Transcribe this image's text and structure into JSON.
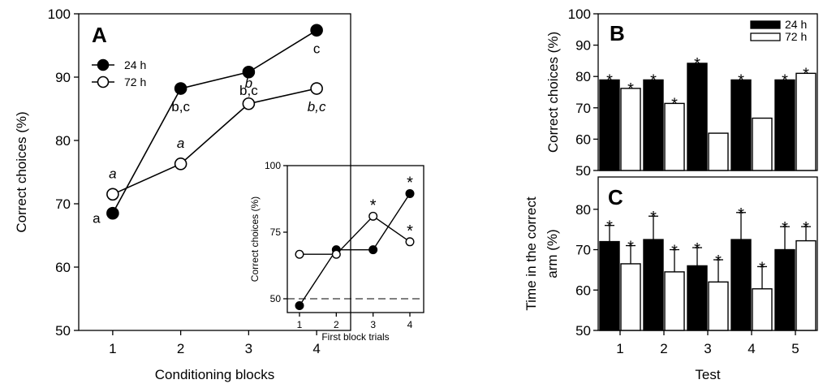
{
  "chart_data": [
    {
      "panel": "A",
      "type": "line",
      "xlabel": "Conditioning blocks",
      "ylabel": "Correct choices (%)",
      "x": [
        1,
        2,
        3,
        4
      ],
      "xlim": [
        0.5,
        4.5
      ],
      "ylim": [
        50,
        100
      ],
      "yticks": [
        50,
        60,
        70,
        80,
        90,
        100
      ],
      "series": [
        {
          "name": "24 h",
          "marker": "filled",
          "values": [
            68.5,
            88.2,
            90.8,
            97.4
          ],
          "labels": [
            "a",
            "b,c",
            "b,c",
            "c"
          ],
          "label_italic": false
        },
        {
          "name": "72 h",
          "marker": "open",
          "values": [
            71.5,
            76.3,
            85.8,
            88.2
          ],
          "labels": [
            "a",
            "a",
            "b",
            "b,c"
          ],
          "label_italic": true
        }
      ],
      "legend_position": "top-left"
    },
    {
      "panel": "A-inset",
      "type": "line",
      "xlabel": "First block trials",
      "ylabel": "Correct choices (%)",
      "x": [
        1,
        2,
        3,
        4
      ],
      "xlim": [
        0.6,
        4.4
      ],
      "ylim": [
        45,
        100
      ],
      "yticks": [
        50,
        75,
        100
      ],
      "reference_line": 50,
      "series": [
        {
          "name": "24 h",
          "marker": "filled",
          "values": [
            47.4,
            68.4,
            68.4,
            89.5
          ],
          "stars": [
            false,
            false,
            false,
            true
          ]
        },
        {
          "name": "72 h",
          "marker": "open",
          "values": [
            66.7,
            66.7,
            81.0,
            71.4
          ],
          "stars": [
            false,
            false,
            true,
            true
          ]
        }
      ]
    },
    {
      "panel": "B",
      "type": "bar",
      "ylabel": "Correct choices (%)",
      "categories": [
        "1",
        "2",
        "3",
        "4",
        "5"
      ],
      "ylim": [
        50,
        100
      ],
      "yticks": [
        50,
        60,
        70,
        80,
        90,
        100
      ],
      "series": [
        {
          "name": "24 h",
          "fill": "black",
          "values": [
            78.9,
            78.9,
            84.2,
            78.9,
            78.9
          ],
          "stars": [
            true,
            true,
            true,
            true,
            true
          ]
        },
        {
          "name": "72 h",
          "fill": "white",
          "values": [
            76.2,
            71.4,
            61.9,
            66.7,
            81.0
          ],
          "stars": [
            true,
            true,
            false,
            false,
            true
          ]
        }
      ],
      "legend_position": "top-right"
    },
    {
      "panel": "C",
      "type": "bar",
      "xlabel": "Test",
      "ylabel": [
        "Time in the correct",
        "arm (%)"
      ],
      "categories": [
        "1",
        "2",
        "3",
        "4",
        "5"
      ],
      "ylim": [
        50,
        88
      ],
      "yticks": [
        50,
        60,
        70,
        80
      ],
      "series": [
        {
          "name": "24 h",
          "fill": "black",
          "values": [
            72,
            72.5,
            66,
            72.5,
            70
          ],
          "errors": [
            4,
            5.8,
            4.5,
            6.7,
            5.7
          ],
          "stars": [
            true,
            true,
            true,
            true,
            true
          ]
        },
        {
          "name": "72 h",
          "fill": "white",
          "values": [
            66.5,
            64.5,
            62,
            60.3,
            72.2
          ],
          "errors": [
            4.5,
            5.5,
            5.5,
            5.5,
            3.5
          ],
          "stars": [
            true,
            true,
            true,
            true,
            true
          ]
        }
      ]
    }
  ],
  "labels": {
    "panel_a": "A",
    "panel_b": "B",
    "panel_c": "C",
    "star": "*"
  }
}
